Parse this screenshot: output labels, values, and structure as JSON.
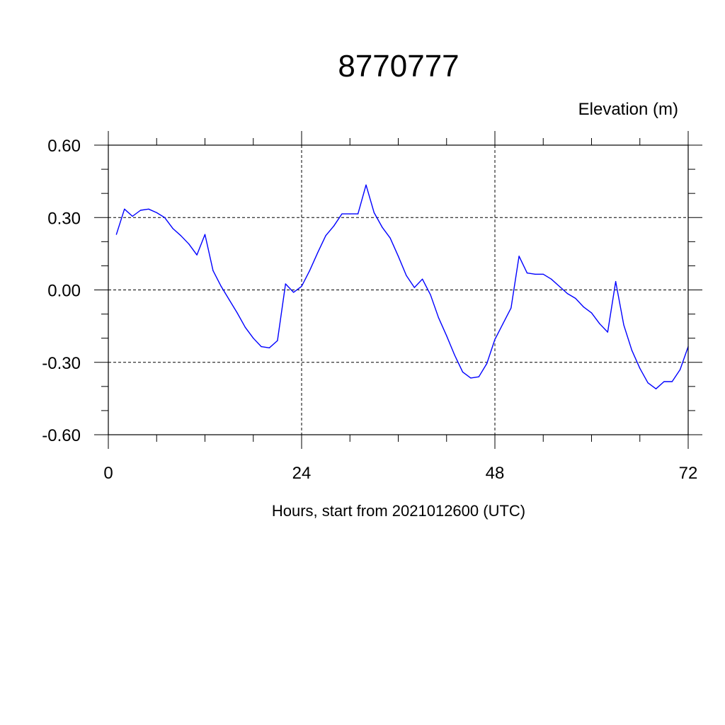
{
  "chart_data": {
    "type": "line",
    "title": "8770777",
    "ylabel": "Elevation (m)",
    "xlabel": "Hours, start from 2021012600 (UTC)",
    "xlim": [
      0,
      72
    ],
    "ylim": [
      -0.6,
      0.6
    ],
    "x_ticks": [
      0,
      24,
      48,
      72
    ],
    "x_tick_labels": [
      "0",
      "24",
      "48",
      "72"
    ],
    "y_ticks": [
      0.6,
      0.3,
      0.0,
      -0.3,
      -0.6
    ],
    "y_tick_labels": [
      "0.60",
      "0.30",
      "0.00",
      "-0.30",
      "-0.60"
    ],
    "grid": true,
    "series": [
      {
        "color": "#0000ff",
        "x": [
          1,
          2,
          3,
          4,
          5,
          6,
          7,
          8,
          9,
          10,
          11,
          12,
          13,
          14,
          15,
          16,
          17,
          18,
          19,
          20,
          21,
          22,
          23,
          24,
          25,
          26,
          27,
          28,
          29,
          30,
          31,
          32,
          33,
          34,
          35,
          36,
          37,
          38,
          39,
          40,
          41,
          42,
          43,
          44,
          45,
          46,
          47,
          48,
          49,
          50,
          51,
          52,
          53,
          54,
          55,
          56,
          57,
          58,
          59,
          60,
          61,
          62,
          63,
          64,
          65,
          66,
          67,
          68,
          69,
          70,
          71,
          72
        ],
        "y": [
          0.23,
          0.335,
          0.305,
          0.33,
          0.335,
          0.32,
          0.3,
          0.255,
          0.225,
          0.19,
          0.145,
          0.23,
          0.08,
          0.015,
          -0.04,
          -0.095,
          -0.155,
          -0.2,
          -0.235,
          -0.24,
          -0.21,
          0.025,
          -0.01,
          0.015,
          0.08,
          0.155,
          0.225,
          0.265,
          0.315,
          0.315,
          0.315,
          0.435,
          0.32,
          0.26,
          0.215,
          0.14,
          0.06,
          0.01,
          0.045,
          -0.02,
          -0.115,
          -0.19,
          -0.27,
          -0.34,
          -0.365,
          -0.36,
          -0.305,
          -0.205,
          -0.14,
          -0.075,
          0.14,
          0.07,
          0.065,
          0.065,
          0.045,
          0.015,
          -0.015,
          -0.035,
          -0.07,
          -0.095,
          -0.14,
          -0.175,
          0.035,
          -0.145,
          -0.25,
          -0.325,
          -0.385,
          -0.41,
          -0.38,
          -0.38,
          -0.33,
          -0.235
        ]
      }
    ]
  }
}
